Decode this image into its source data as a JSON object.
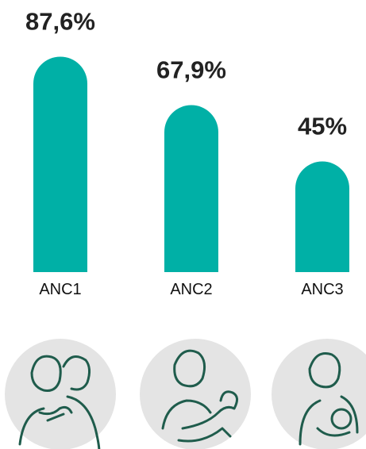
{
  "chart_data": {
    "type": "bar",
    "categories": [
      "ANC1",
      "ANC2",
      "ANC3"
    ],
    "values": [
      87.6,
      67.9,
      45
    ],
    "value_labels": [
      "87,6%",
      "67,9%",
      "45%"
    ],
    "color": "#00b0a6"
  }
}
